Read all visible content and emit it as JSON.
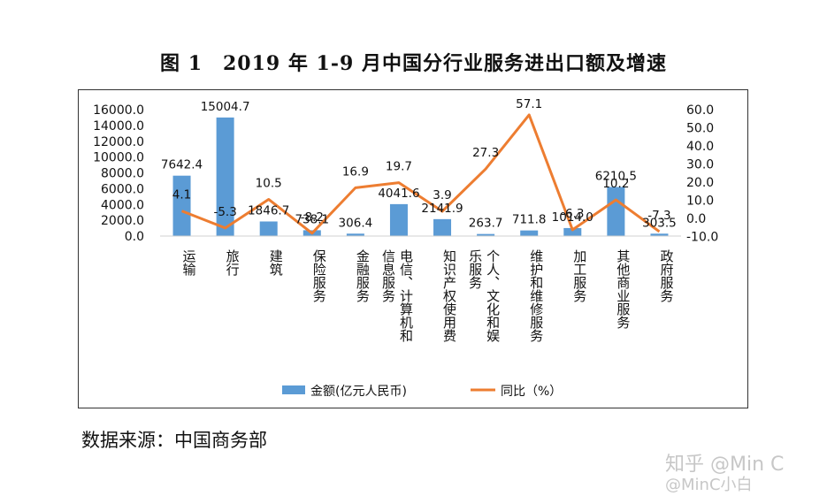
{
  "title": "图 1　2019 年 1-9 月中国分行业服务进出口额及增速",
  "source": "数据来源：中国商务部",
  "watermark": {
    "line1": "知乎 @Min C",
    "line2": "@MinC小白"
  },
  "colors": {
    "bar": "#5b9bd5",
    "line": "#ed7d31"
  },
  "chart_data": {
    "type": "bar",
    "categories": [
      "运输",
      "旅行",
      "建筑",
      "保险服务",
      "金融服务",
      "电信、计算机和信息服务",
      "知识产权使用费",
      "个人、文化和娱乐服务",
      "维护和维修服务",
      "加工服务",
      "其他商业服务",
      "政府服务"
    ],
    "category_lines": [
      [
        "运输"
      ],
      [
        "旅行"
      ],
      [
        "建筑"
      ],
      [
        "保险服务"
      ],
      [
        "金融服务"
      ],
      [
        "电信、计算机和",
        "信息服务"
      ],
      [
        "知识产权使用费"
      ],
      [
        "个人、文化和娱",
        "乐服务"
      ],
      [
        "维护和维修服务"
      ],
      [
        "加工服务"
      ],
      [
        "其他商业服务"
      ],
      [
        "政府服务"
      ]
    ],
    "series": [
      {
        "name": "金额(亿元人民币)",
        "type": "bar",
        "axis": "left",
        "values": [
          7642.4,
          15004.7,
          1846.7,
          738.1,
          306.4,
          4041.6,
          2141.9,
          263.7,
          711.8,
          1014.0,
          6210.5,
          303.5
        ],
        "labels": [
          "7642.4",
          "15004.7",
          "1846.7",
          "738.1",
          "306.4",
          "4041.6",
          "2141.9",
          "263.7",
          "711.8",
          "1014.0",
          "6210.5",
          "303.5"
        ]
      },
      {
        "name": "同比（%）",
        "type": "line",
        "axis": "right",
        "values": [
          4.1,
          -5.3,
          10.5,
          -8.2,
          16.9,
          19.7,
          3.9,
          27.3,
          57.1,
          -6.3,
          10.2,
          -7.3
        ],
        "labels": [
          "4.1",
          "-5.3",
          "10.5",
          "-8.2",
          "16.9",
          "19.7",
          "3.9",
          "27.3",
          "57.1",
          "-6.3",
          "10.2",
          "-7.3"
        ]
      }
    ],
    "y_left": {
      "ticks": [
        "16000.0",
        "14000.0",
        "12000.0",
        "10000.0",
        "8000.0",
        "6000.0",
        "4000.0",
        "2000.0",
        "0.0"
      ],
      "range": [
        0,
        16000
      ]
    },
    "y_right": {
      "ticks": [
        "60.0",
        "50.0",
        "40.0",
        "30.0",
        "20.0",
        "10.0",
        "0.0",
        "-10.0"
      ],
      "range": [
        -10,
        60
      ]
    },
    "legend_position": "bottom"
  }
}
